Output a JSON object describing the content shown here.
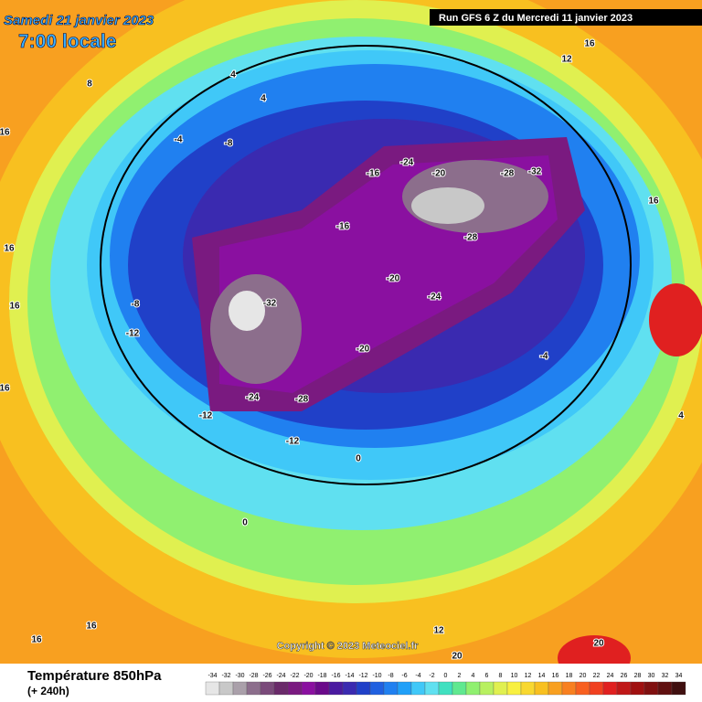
{
  "header": {
    "date": "Samedi 21 janvier 2023",
    "time": "7:00 locale",
    "run": "Run GFS 6 Z du Mercredi 11 janvier 2023"
  },
  "copyright": "Copyright © 2023 Meteociel.fr",
  "legend": {
    "title": "Température 850hPa",
    "subtitle": "(+ 240h)",
    "ticks": [
      -34,
      -32,
      -30,
      -28,
      -26,
      -24,
      -22,
      -20,
      -18,
      -16,
      -14,
      -12,
      -10,
      -8,
      -6,
      -4,
      -2,
      0,
      2,
      4,
      6,
      8,
      10,
      12,
      14,
      16,
      18,
      20,
      22,
      24,
      26,
      28,
      30,
      32,
      34
    ],
    "colors": [
      "#e6e6e6",
      "#c8c8c8",
      "#aaa0aa",
      "#8c6e8c",
      "#7a4a7a",
      "#6a2a6a",
      "#7a1a80",
      "#8a10a0",
      "#6a0a8a",
      "#4a1aa0",
      "#3a2ab0",
      "#2040c8",
      "#2060e0",
      "#2080f0",
      "#20a0f8",
      "#40c8f8",
      "#60e0f0",
      "#40e0c0",
      "#60e890",
      "#90f070",
      "#b8f060",
      "#e0f050",
      "#f8f040",
      "#f8d830",
      "#f8c020",
      "#f8a020",
      "#f88020",
      "#f86020",
      "#f04020",
      "#e02020",
      "#c01818",
      "#a01010",
      "#801010",
      "#601010",
      "#401010"
    ]
  },
  "map_labels": [
    16,
    16,
    16,
    16,
    16,
    16,
    16,
    16,
    12,
    12,
    8,
    4,
    4,
    4,
    -4,
    -4,
    -8,
    -8,
    -12,
    -12,
    -12,
    -16,
    -16,
    -20,
    -20,
    -20,
    -24,
    -24,
    -24,
    -28,
    -28,
    -28,
    -32,
    -32,
    20,
    20,
    0,
    0
  ]
}
